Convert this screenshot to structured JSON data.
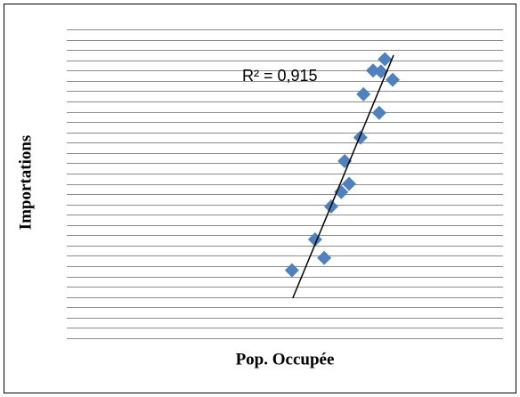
{
  "chart_data": {
    "type": "scatter",
    "x_label": "Pop. Occupée",
    "y_label": "Importations",
    "annotation": "R² = 0,915",
    "series": [
      {
        "color": "#4f81bd",
        "x": [
          51.6,
          56.9,
          59.0,
          60.6,
          62.9,
          64.7,
          63.7,
          67.3,
          68.0,
          71.6,
          70.2,
          72.9,
          74.7,
          72.0
        ],
        "values": [
          6.6,
          9.6,
          7.8,
          12.8,
          14.2,
          15.0,
          17.2,
          19.5,
          23.7,
          21.9,
          26.0,
          27.1,
          25.1,
          25.9
        ]
      }
    ],
    "trendline": {
      "x": [
        51.8,
        74.9
      ],
      "values": [
        3.9,
        27.5
      ],
      "color": "#000000"
    },
    "xlim": [
      0,
      100
    ],
    "ylim": [
      0,
      30
    ],
    "yticks": [
      0,
      1,
      2,
      3,
      4,
      5,
      6,
      7,
      8,
      9,
      10,
      11,
      12,
      13,
      14,
      15,
      16,
      17,
      18,
      19,
      20,
      21,
      22,
      23,
      24,
      25,
      26,
      27,
      28,
      29,
      30
    ],
    "grid": true
  }
}
